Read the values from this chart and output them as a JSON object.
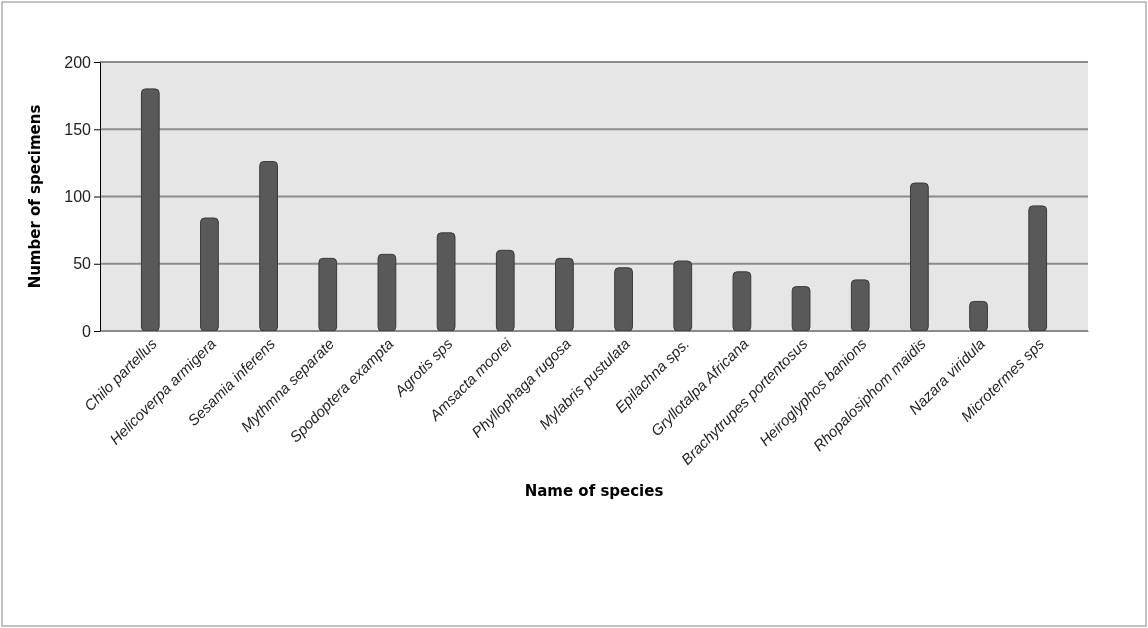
{
  "chart_data": {
    "type": "bar",
    "xlabel": "Name of species",
    "ylabel": "Number of specimens",
    "categories": [
      "Chilo partellus",
      "Helicoverpa armigera",
      "Sesamia inferens",
      "Mythmna separate",
      "Spodoptera exampta",
      "Agrotis sps",
      "Amsacta moorei",
      "Phyllophaga rugosa",
      "Mylabris pustulata",
      "Epilachna sps.",
      "Gryllotalpa Africana",
      "Brachytrupes portentosus",
      "Heiroglyphos banions",
      "Rhopalosiphom maidis",
      "Nazara viridula",
      "Microtermes sps"
    ],
    "values": [
      180,
      84,
      126,
      54,
      57,
      73,
      60,
      54,
      47,
      52,
      44,
      33,
      38,
      110,
      22,
      93
    ],
    "color": "#595959",
    "ylim": [
      0,
      200
    ],
    "yticks": [
      0,
      50,
      100,
      150,
      200
    ],
    "grid": "y"
  }
}
